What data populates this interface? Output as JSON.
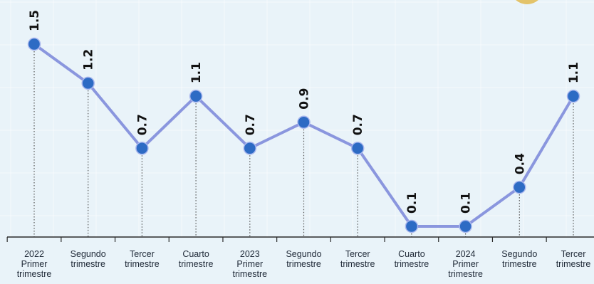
{
  "colors": {
    "background": "#e9f3f9",
    "grid": "#ffffff",
    "line": "#8a96de",
    "marker": "#2d6bc4",
    "axis": "#2b2b2b",
    "dotted": "#555555",
    "coin": "#e3c36a"
  },
  "chart_data": {
    "type": "line",
    "title": "",
    "xlabel": "",
    "ylabel": "",
    "ylim": [
      0,
      1.5
    ],
    "grid": true,
    "legend": "none",
    "categories": [
      [
        "2022",
        "Primer",
        "trimestre"
      ],
      [
        "Segundo",
        "trimestre"
      ],
      [
        "Tercer",
        "trimestre"
      ],
      [
        "Cuarto",
        "trimestre"
      ],
      [
        "2023",
        "Primer",
        "trimestre"
      ],
      [
        "Segundo",
        "trimestre"
      ],
      [
        "Tercer",
        "trimestre"
      ],
      [
        "Cuarto",
        "trimestre"
      ],
      [
        "2024",
        "Primer",
        "trimestre"
      ],
      [
        "Segundo",
        "trimestre"
      ],
      [
        "Tercer",
        "trimestre"
      ]
    ],
    "values": [
      1.5,
      1.2,
      0.7,
      1.1,
      0.7,
      0.9,
      0.7,
      0.1,
      0.1,
      0.4,
      1.1
    ],
    "value_labels": [
      "1.5",
      "1.2",
      "0.7",
      "1.1",
      "0.7",
      "0.9",
      "0.7",
      "0.1",
      "0.1",
      "0.4",
      "1.1"
    ]
  }
}
